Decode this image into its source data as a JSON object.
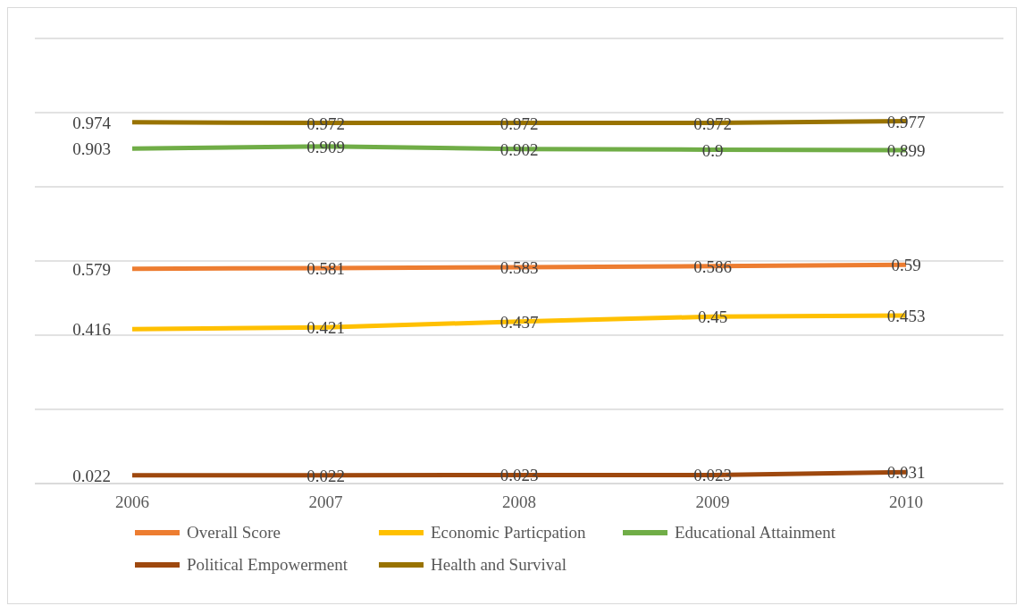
{
  "chart_data": {
    "type": "line",
    "categories": [
      "2006",
      "2007",
      "2008",
      "2009",
      "2010"
    ],
    "series": [
      {
        "name": "Overall Score",
        "color": "#ed7d31",
        "values": [
          0.579,
          0.581,
          0.583,
          0.586,
          0.59
        ]
      },
      {
        "name": "Economic Particpation",
        "color": "#ffc000",
        "values": [
          0.416,
          0.421,
          0.437,
          0.45,
          0.453
        ]
      },
      {
        "name": "Educational Attainment",
        "color": "#70ad47",
        "values": [
          0.903,
          0.909,
          0.902,
          0.9,
          0.899
        ]
      },
      {
        "name": "Political Empowerment",
        "color": "#9e480e",
        "values": [
          0.022,
          0.022,
          0.023,
          0.023,
          0.031
        ]
      },
      {
        "name": "Health and Survival",
        "color": "#997300",
        "values": [
          0.974,
          0.972,
          0.972,
          0.972,
          0.977
        ]
      }
    ],
    "ylim": [
      0,
      1.2
    ],
    "yticks": [
      0,
      0.2,
      0.4,
      0.6,
      0.8,
      1,
      1.2
    ],
    "tick_labels": "x",
    "grid": "y",
    "legend": "bottom",
    "data_labels": true,
    "marker": "none",
    "line_style": "solid"
  }
}
